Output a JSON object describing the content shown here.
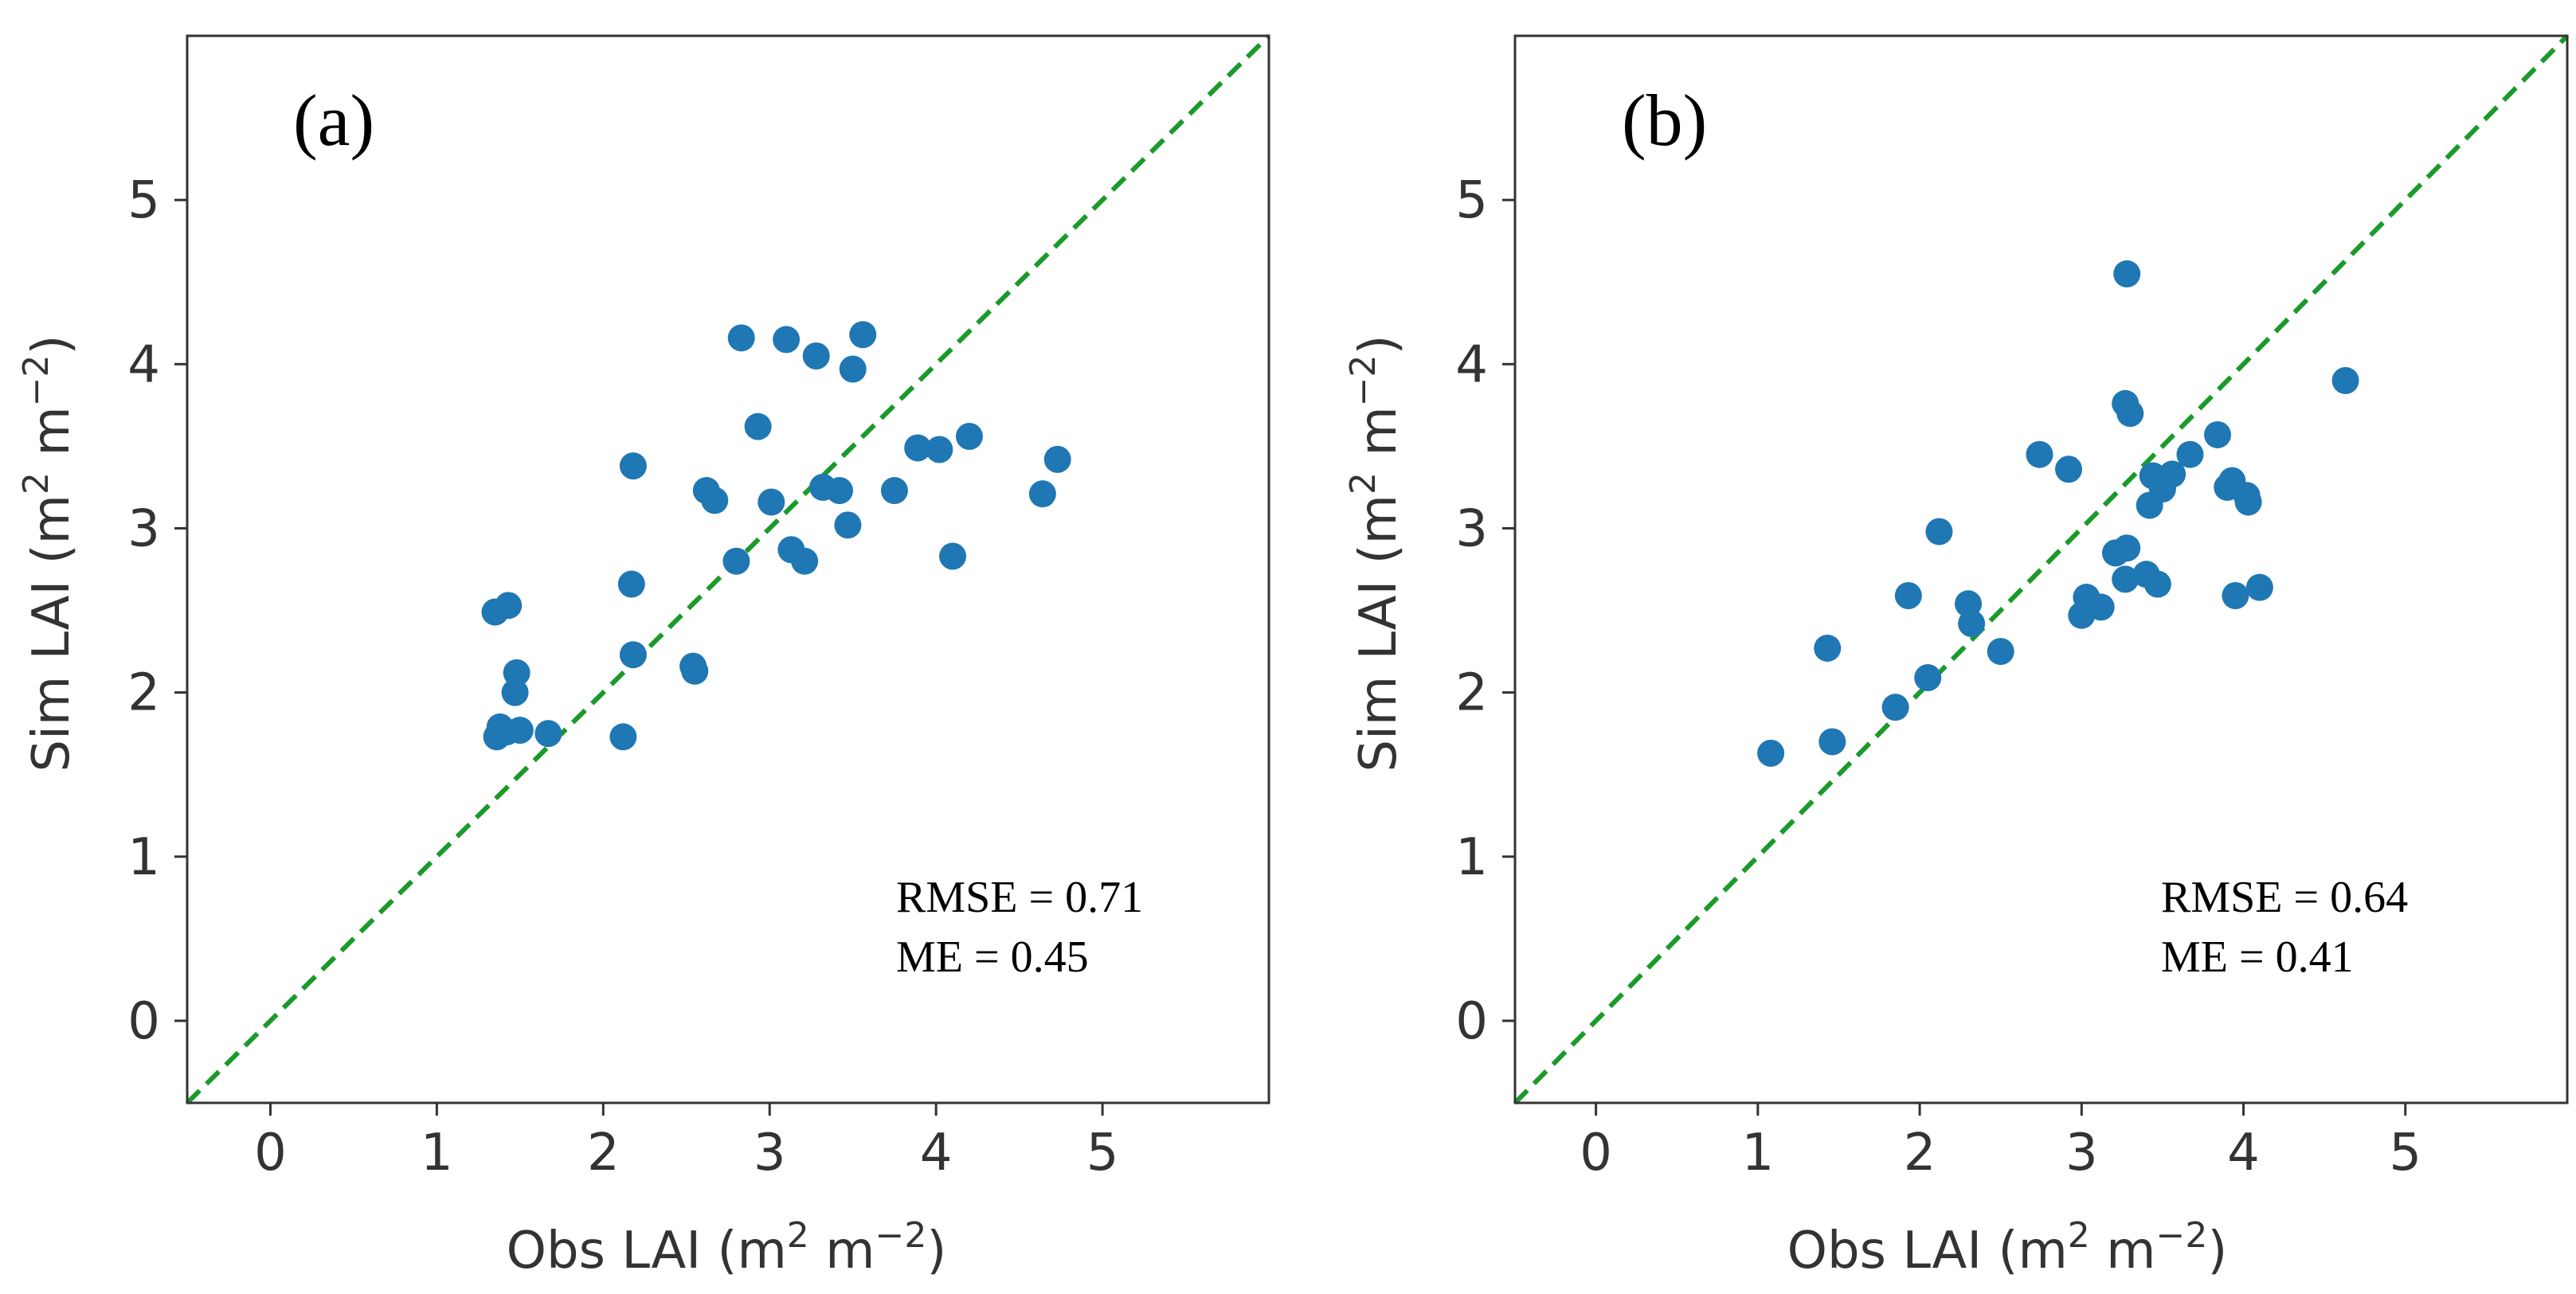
{
  "chart_data": [
    {
      "type": "scatter",
      "panel_label": "(a)",
      "xlabel": "Obs LAI (m",
      "ylabel": "Sim LAI (m",
      "unit_parts": [
        "2",
        " m",
        "−2",
        ")"
      ],
      "xlim": [
        -0.5,
        6.0
      ],
      "ylim": [
        -0.5,
        6.0
      ],
      "xticks": [
        0,
        1,
        2,
        3,
        4,
        5
      ],
      "yticks": [
        0,
        1,
        2,
        3,
        4,
        5
      ],
      "reference_line": "1:1",
      "stats": {
        "rmse": "RMSE = 0.71",
        "me": "ME = 0.45"
      },
      "points": [
        [
          1.35,
          2.49
        ],
        [
          1.43,
          2.53
        ],
        [
          1.48,
          2.12
        ],
        [
          1.47,
          2.0
        ],
        [
          1.38,
          1.79
        ],
        [
          1.36,
          1.73
        ],
        [
          1.42,
          1.76
        ],
        [
          1.5,
          1.77
        ],
        [
          1.67,
          1.75
        ],
        [
          2.12,
          1.73
        ],
        [
          2.18,
          3.38
        ],
        [
          2.17,
          2.66
        ],
        [
          2.18,
          2.23
        ],
        [
          2.54,
          2.16
        ],
        [
          2.55,
          2.13
        ],
        [
          2.62,
          3.23
        ],
        [
          2.67,
          3.17
        ],
        [
          2.8,
          2.8
        ],
        [
          2.83,
          4.16
        ],
        [
          2.93,
          3.62
        ],
        [
          3.01,
          3.16
        ],
        [
          3.1,
          4.15
        ],
        [
          3.13,
          2.87
        ],
        [
          3.21,
          2.8
        ],
        [
          3.28,
          4.05
        ],
        [
          3.32,
          3.25
        ],
        [
          3.42,
          3.23
        ],
        [
          3.47,
          3.02
        ],
        [
          3.5,
          3.97
        ],
        [
          3.56,
          4.18
        ],
        [
          3.75,
          3.23
        ],
        [
          3.89,
          3.49
        ],
        [
          4.02,
          3.48
        ],
        [
          4.2,
          3.56
        ],
        [
          4.1,
          2.83
        ],
        [
          4.64,
          3.21
        ],
        [
          4.73,
          3.42
        ]
      ]
    },
    {
      "type": "scatter",
      "panel_label": "(b)",
      "xlabel": "Obs LAI (m",
      "ylabel": "Sim LAI (m",
      "unit_parts": [
        "2",
        " m",
        "−2",
        ")"
      ],
      "xlim": [
        -0.5,
        6.0
      ],
      "ylim": [
        -0.5,
        6.0
      ],
      "xticks": [
        0,
        1,
        2,
        3,
        4,
        5
      ],
      "yticks": [
        0,
        1,
        2,
        3,
        4,
        5
      ],
      "reference_line": "1:1",
      "stats": {
        "rmse": "RMSE = 0.64",
        "me": "ME = 0.41"
      },
      "points": [
        [
          1.08,
          1.63
        ],
        [
          1.43,
          2.27
        ],
        [
          1.46,
          1.7
        ],
        [
          1.85,
          1.91
        ],
        [
          1.93,
          2.59
        ],
        [
          2.05,
          2.09
        ],
        [
          2.12,
          2.98
        ],
        [
          2.3,
          2.54
        ],
        [
          2.32,
          2.42
        ],
        [
          2.5,
          2.25
        ],
        [
          2.74,
          3.45
        ],
        [
          2.92,
          3.36
        ],
        [
          3.0,
          2.47
        ],
        [
          3.03,
          2.58
        ],
        [
          3.12,
          2.52
        ],
        [
          3.21,
          2.85
        ],
        [
          3.27,
          2.69
        ],
        [
          3.28,
          2.88
        ],
        [
          3.27,
          3.76
        ],
        [
          3.3,
          3.7
        ],
        [
          3.28,
          4.55
        ],
        [
          3.4,
          2.72
        ],
        [
          3.42,
          3.14
        ],
        [
          3.44,
          3.32
        ],
        [
          3.47,
          2.66
        ],
        [
          3.5,
          3.24
        ],
        [
          3.56,
          3.33
        ],
        [
          3.67,
          3.45
        ],
        [
          3.84,
          3.57
        ],
        [
          3.9,
          3.25
        ],
        [
          3.93,
          3.29
        ],
        [
          3.95,
          2.59
        ],
        [
          4.02,
          3.2
        ],
        [
          4.03,
          3.16
        ],
        [
          4.1,
          2.64
        ],
        [
          4.63,
          3.9
        ]
      ]
    }
  ]
}
